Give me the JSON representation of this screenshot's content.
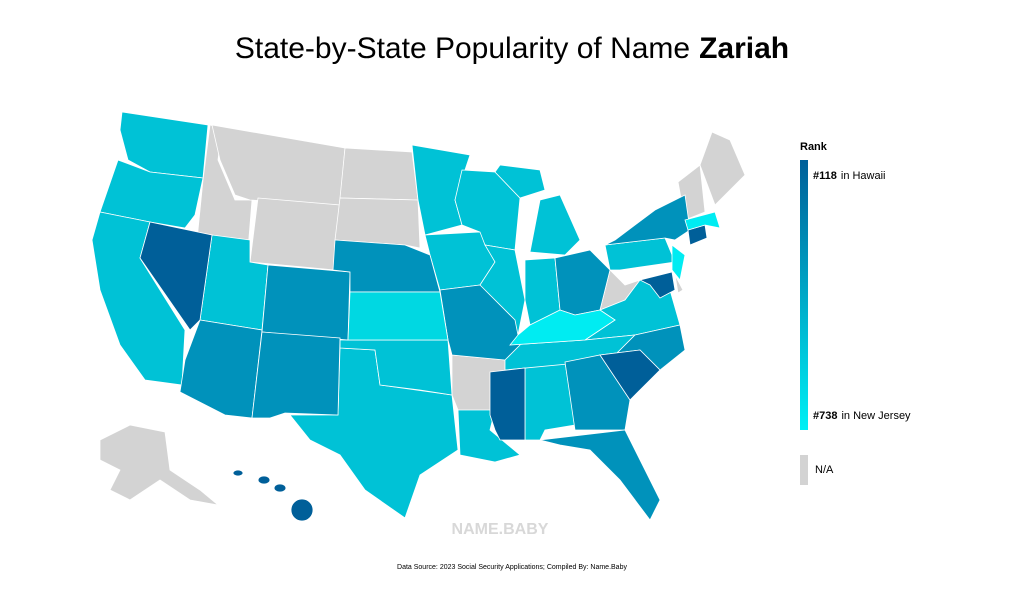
{
  "header": {
    "title": "State-by-State Popularity of Name",
    "name": "Zariah"
  },
  "legend": {
    "title": "Rank",
    "top": {
      "rank": "#118",
      "label": "in Hawaii"
    },
    "bottom": {
      "rank": "#738",
      "label": "in New Jersey"
    },
    "colors": [
      "#005f99",
      "#00f0f5"
    ],
    "na": {
      "label": "N/A",
      "color": "#d3d3d3"
    }
  },
  "watermark": "NAME.BABY",
  "source": "Data Source: 2023 Social Security Applications; Compiled By: Name.Baby"
}
